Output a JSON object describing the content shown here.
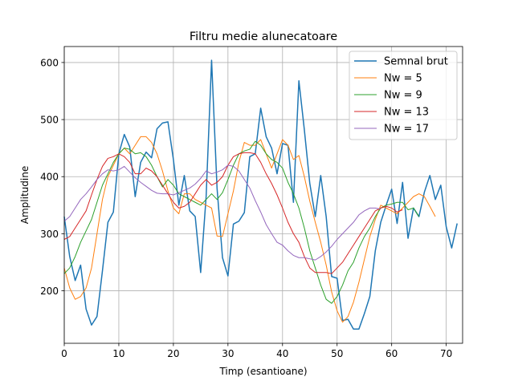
{
  "chart_data": {
    "type": "line",
    "title": "Filtru medie alunecatoare",
    "xlabel": "Timp (esantioane)",
    "ylabel": "Amplitudine",
    "xlim": [
      0,
      73
    ],
    "ylim": [
      108,
      628
    ],
    "x_ticks": [
      0,
      10,
      20,
      30,
      40,
      50,
      60,
      70
    ],
    "y_ticks": [
      200,
      300,
      400,
      500,
      600
    ],
    "grid": true,
    "legend_position": "top-right",
    "series": [
      {
        "name": "Semnal brut",
        "color": "#1f77b4",
        "x_start": 0,
        "values": [
          330,
          260,
          218,
          245,
          168,
          140,
          155,
          235,
          320,
          338,
          440,
          474,
          452,
          365,
          425,
          443,
          433,
          484,
          494,
          496,
          430,
          350,
          402,
          340,
          330,
          232,
          365,
          604,
          380,
          258,
          226,
          317,
          322,
          337,
          435,
          440,
          520,
          470,
          450,
          405,
          458,
          455,
          355,
          568,
          482,
          388,
          330,
          402,
          330,
          225,
          222,
          148,
          150,
          133,
          133,
          160,
          190,
          270,
          320,
          350,
          378,
          318,
          390,
          292,
          345,
          330,
          373,
          402,
          360,
          385,
          312,
          275,
          318
        ]
      },
      {
        "name": "Nw = 5",
        "color": "#ff7f0e",
        "x_start": 0,
        "values": [
          240,
          205,
          185,
          190,
          205,
          240,
          300,
          360,
          400,
          420,
          440,
          450,
          440,
          455,
          470,
          470,
          460,
          440,
          410,
          375,
          345,
          335,
          370,
          370,
          360,
          355,
          350,
          345,
          296,
          295,
          335,
          375,
          425,
          460,
          455,
          455,
          465,
          440,
          415,
          440,
          465,
          455,
          430,
          437,
          400,
          357,
          320,
          285,
          245,
          198,
          165,
          145,
          155,
          180,
          215,
          255,
          295,
          325,
          350,
          345,
          340,
          335,
          345,
          355,
          365,
          370,
          365,
          348,
          330
        ]
      },
      {
        "name": "Nw = 9",
        "color": "#2ca02c",
        "x_start": 0,
        "values": [
          230,
          240,
          260,
          285,
          305,
          325,
          355,
          385,
          405,
          425,
          440,
          450,
          448,
          440,
          442,
          435,
          420,
          400,
          382,
          395,
          385,
          370,
          365,
          360,
          355,
          350,
          360,
          370,
          360,
          372,
          395,
          420,
          440,
          445,
          448,
          462,
          455,
          440,
          430,
          425,
          415,
          390,
          370,
          345,
          310,
          270,
          240,
          210,
          185,
          178,
          190,
          210,
          235,
          250,
          275,
          295,
          310,
          330,
          345,
          350,
          352,
          355,
          355,
          342,
          345,
          330
        ]
      },
      {
        "name": "Nw = 13",
        "color": "#d62728",
        "x_start": 0,
        "values": [
          290,
          295,
          310,
          325,
          340,
          368,
          395,
          418,
          432,
          435,
          440,
          435,
          425,
          405,
          405,
          415,
          410,
          400,
          385,
          370,
          355,
          345,
          348,
          355,
          370,
          385,
          395,
          385,
          390,
          400,
          420,
          435,
          440,
          442,
          442,
          440,
          425,
          405,
          388,
          368,
          345,
          320,
          300,
          285,
          260,
          240,
          232,
          232,
          232,
          230,
          240,
          250,
          265,
          280,
          295,
          310,
          325,
          340,
          345,
          348,
          345,
          338,
          342
        ]
      },
      {
        "name": "Nw = 17",
        "color": "#9467bd",
        "x_start": 0,
        "values": [
          322,
          330,
          345,
          360,
          370,
          382,
          395,
          405,
          412,
          410,
          412,
          418,
          408,
          398,
          390,
          383,
          376,
          371,
          370,
          370,
          368,
          372,
          376,
          380,
          387,
          397,
          410,
          405,
          408,
          412,
          420,
          418,
          410,
          395,
          380,
          358,
          338,
          316,
          300,
          285,
          280,
          270,
          262,
          258,
          258,
          256,
          254,
          260,
          268,
          278,
          290,
          300,
          310,
          320,
          333,
          340,
          345,
          345,
          343
        ]
      }
    ]
  }
}
